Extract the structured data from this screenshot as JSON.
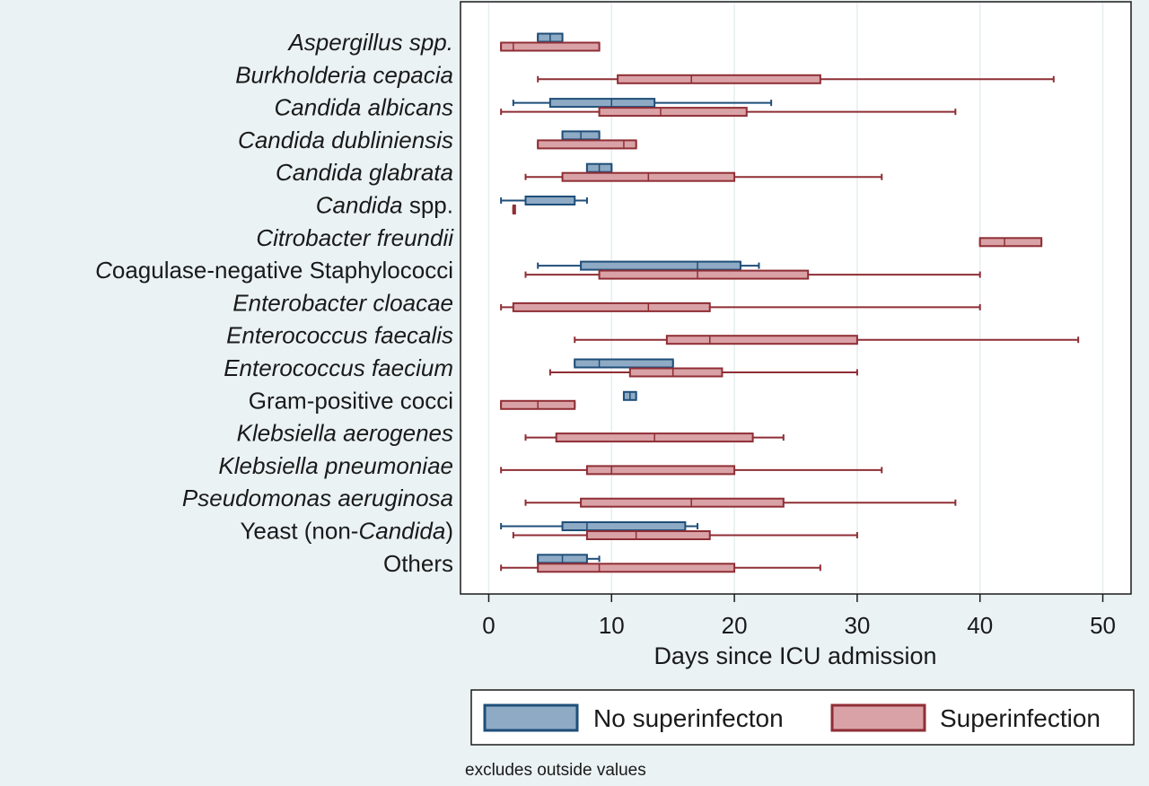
{
  "chart_data": {
    "type": "box",
    "orientation": "horizontal",
    "xlabel": "Days since ICU admission",
    "xlim": [
      -2.3,
      52.3
    ],
    "xticks": [
      0,
      10,
      20,
      30,
      40,
      50
    ],
    "xtick_labels": [
      "0",
      "10",
      "20",
      "30",
      "40",
      "50"
    ],
    "grid": "vertical",
    "legend": {
      "position": "bottom",
      "entries": [
        "No superinfecton",
        "Superinfection"
      ]
    },
    "note": "excludes outside values",
    "colors": {
      "background": "#eaf2f3",
      "plot_background": "#ffffff",
      "grid": "#e6eef0",
      "no_superinfection_fill": "#8eaac4",
      "no_superinfection_line": "#1f4e79",
      "superinfection_fill": "#d9a2a6",
      "superinfection_line": "#8f2e35"
    },
    "series_keys": [
      "no_superinfection",
      "superinfection"
    ],
    "categories": [
      {
        "parts": [
          {
            "t": "Aspergillus spp.",
            "i": true
          }
        ],
        "no_superinfection": {
          "lw": 4,
          "q1": 4,
          "med": 5,
          "q3": 6,
          "uw": 6
        },
        "superinfection": {
          "lw": 1,
          "q1": 1,
          "med": 2,
          "q3": 9,
          "uw": 9
        }
      },
      {
        "parts": [
          {
            "t": "Burkholderia cepacia",
            "i": true
          }
        ],
        "superinfection": {
          "lw": 4,
          "q1": 10.5,
          "med": 16.5,
          "q3": 27,
          "uw": 46
        }
      },
      {
        "parts": [
          {
            "t": "Candida albicans",
            "i": true
          }
        ],
        "no_superinfection": {
          "lw": 2,
          "q1": 5,
          "med": 10,
          "q3": 13.5,
          "uw": 23
        },
        "superinfection": {
          "lw": 1,
          "q1": 9,
          "med": 14,
          "q3": 21,
          "uw": 38
        }
      },
      {
        "parts": [
          {
            "t": "Candida dubliniensis",
            "i": true
          }
        ],
        "no_superinfection": {
          "lw": 6,
          "q1": 6,
          "med": 7.5,
          "q3": 9,
          "uw": 9
        },
        "superinfection": {
          "lw": 4,
          "q1": 4,
          "med": 11,
          "q3": 12,
          "uw": 12
        }
      },
      {
        "parts": [
          {
            "t": "Candida glabrata",
            "i": true
          }
        ],
        "no_superinfection": {
          "lw": 8,
          "q1": 8,
          "med": 9,
          "q3": 10,
          "uw": 10
        },
        "superinfection": {
          "lw": 3,
          "q1": 6,
          "med": 13,
          "q3": 20,
          "uw": 32
        }
      },
      {
        "parts": [
          {
            "t": "Candida",
            "i": true
          },
          {
            "t": " spp.",
            "i": false
          }
        ],
        "no_superinfection": {
          "lw": 1,
          "q1": 3,
          "med": 7,
          "q3": 7,
          "uw": 8
        },
        "superinfection": {
          "lw": 2,
          "q1": 2,
          "med": 2,
          "q3": 2,
          "uw": 2
        }
      },
      {
        "parts": [
          {
            "t": "Citrobacter freundii",
            "i": true
          }
        ],
        "superinfection": {
          "lw": 40,
          "q1": 40,
          "med": 42,
          "q3": 45,
          "uw": 45
        }
      },
      {
        "parts": [
          {
            "t": "C",
            "i": true
          },
          {
            "t": "oagulase-negative Staphylococci",
            "i": false
          }
        ],
        "no_superinfection": {
          "lw": 4,
          "q1": 7.5,
          "med": 17,
          "q3": 20.5,
          "uw": 22
        },
        "superinfection": {
          "lw": 3,
          "q1": 9,
          "med": 17,
          "q3": 26,
          "uw": 40
        }
      },
      {
        "parts": [
          {
            "t": "Enterobacter cloacae",
            "i": true
          }
        ],
        "superinfection": {
          "lw": 1,
          "q1": 2,
          "med": 13,
          "q3": 18,
          "uw": 40
        }
      },
      {
        "parts": [
          {
            "t": "Enterococcus faecalis",
            "i": true
          }
        ],
        "superinfection": {
          "lw": 7,
          "q1": 14.5,
          "med": 18,
          "q3": 30,
          "uw": 48
        }
      },
      {
        "parts": [
          {
            "t": "Enterococcus faecium",
            "i": true
          }
        ],
        "no_superinfection": {
          "lw": 7,
          "q1": 7,
          "med": 9,
          "q3": 15,
          "uw": 15
        },
        "superinfection": {
          "lw": 5,
          "q1": 11.5,
          "med": 15,
          "q3": 19,
          "uw": 30
        }
      },
      {
        "parts": [
          {
            "t": "Gram-positive cocci",
            "i": false
          }
        ],
        "no_superinfection": {
          "lw": 11,
          "q1": 11,
          "med": 11.5,
          "q3": 12,
          "uw": 12
        },
        "superinfection": {
          "lw": 1,
          "q1": 1,
          "med": 4,
          "q3": 7,
          "uw": 7
        }
      },
      {
        "parts": [
          {
            "t": "Klebsiella aerogenes",
            "i": true
          }
        ],
        "superinfection": {
          "lw": 3,
          "q1": 5.5,
          "med": 13.5,
          "q3": 21.5,
          "uw": 24
        }
      },
      {
        "parts": [
          {
            "t": "Klebsiella pneumoniae",
            "i": true
          }
        ],
        "superinfection": {
          "lw": 1,
          "q1": 8,
          "med": 10,
          "q3": 20,
          "uw": 32
        }
      },
      {
        "parts": [
          {
            "t": "Pseudomonas aeruginosa",
            "i": true
          }
        ],
        "superinfection": {
          "lw": 3,
          "q1": 7.5,
          "med": 16.5,
          "q3": 24,
          "uw": 38
        }
      },
      {
        "parts": [
          {
            "t": "Yeast (non-",
            "i": false
          },
          {
            "t": "Candida",
            "i": true
          },
          {
            "t": ")",
            "i": false
          }
        ],
        "no_superinfection": {
          "lw": 1,
          "q1": 6,
          "med": 8,
          "q3": 16,
          "uw": 17
        },
        "superinfection": {
          "lw": 2,
          "q1": 8,
          "med": 12,
          "q3": 18,
          "uw": 30
        }
      },
      {
        "parts": [
          {
            "t": "Others",
            "i": false
          }
        ],
        "no_superinfection": {
          "lw": 4,
          "q1": 4,
          "med": 6,
          "q3": 8,
          "uw": 9
        },
        "superinfection": {
          "lw": 1,
          "q1": 4,
          "med": 9,
          "q3": 20,
          "uw": 27
        }
      }
    ]
  }
}
